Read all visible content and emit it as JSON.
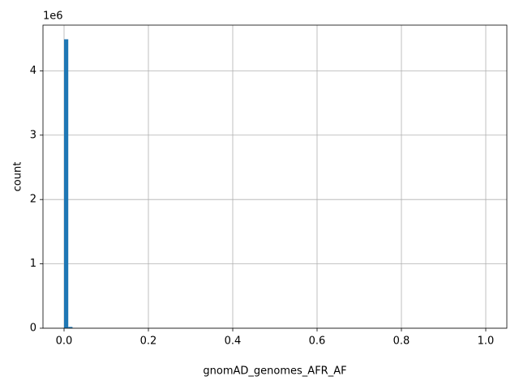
{
  "chart_data": {
    "type": "histogram",
    "x_label": "gnomAD_genomes_AFR_AF",
    "y_label": "count",
    "y_offset_label": "1e6",
    "color": "#1f77b4",
    "grid": true,
    "bins": [
      0,
      0.01,
      0.02,
      0.03,
      0.04,
      0.05,
      0.06,
      0.07,
      0.08,
      0.09,
      0.1,
      0.11,
      0.12,
      0.13,
      0.14,
      0.15,
      0.16,
      0.17,
      0.18,
      0.19,
      0.2,
      0.21,
      0.22,
      0.23,
      0.24,
      0.25,
      0.26,
      0.27,
      0.28,
      0.29,
      0.3,
      0.31,
      0.32,
      0.33,
      0.34,
      0.35,
      0.36,
      0.37,
      0.38,
      0.39,
      0.4,
      0.41,
      0.42,
      0.43,
      0.44,
      0.45,
      0.46,
      0.47,
      0.48,
      0.49,
      0.5,
      0.51,
      0.52,
      0.53,
      0.54,
      0.55,
      0.56,
      0.57,
      0.58,
      0.59,
      0.6,
      0.61,
      0.62,
      0.63,
      0.64,
      0.65,
      0.66,
      0.67,
      0.68,
      0.69,
      0.7,
      0.71,
      0.72,
      0.73,
      0.74,
      0.75,
      0.76,
      0.77,
      0.78,
      0.79,
      0.8,
      0.81,
      0.82,
      0.83,
      0.84,
      0.85,
      0.86,
      0.87,
      0.88,
      0.89,
      0.9,
      0.91,
      0.92,
      0.93,
      0.94,
      0.95,
      0.96,
      0.97,
      0.98,
      0.99,
      1
    ],
    "values": [
      4490000,
      20000,
      0,
      0,
      0,
      0,
      0,
      0,
      0,
      0,
      0,
      0,
      0,
      0,
      0,
      0,
      0,
      0,
      0,
      0,
      0,
      0,
      0,
      0,
      0,
      0,
      0,
      0,
      0,
      0,
      0,
      0,
      0,
      0,
      0,
      0,
      0,
      0,
      0,
      0,
      0,
      0,
      0,
      0,
      0,
      0,
      0,
      0,
      0,
      0,
      0,
      0,
      0,
      0,
      0,
      0,
      0,
      0,
      0,
      0,
      0,
      0,
      0,
      0,
      0,
      0,
      0,
      0,
      0,
      0,
      0,
      0,
      0,
      0,
      0,
      0,
      0,
      0,
      0,
      0,
      0,
      0,
      0,
      0,
      0,
      0,
      0,
      0,
      0,
      0,
      0,
      0,
      0,
      0,
      0,
      0,
      0,
      0,
      0,
      0
    ],
    "xlim": [
      -0.05,
      1.05
    ],
    "ylim": [
      0,
      4710000
    ],
    "xticks": [
      {
        "value": 0,
        "label": "0.0"
      },
      0.2,
      0.4,
      0.6,
      0.8,
      {
        "value": 1,
        "label": "1.0"
      }
    ],
    "yticks": [
      {
        "value": 0,
        "label": "0"
      },
      {
        "value": 1000000,
        "label": "1"
      },
      {
        "value": 2000000,
        "label": "2"
      },
      {
        "value": 3000000,
        "label": "3"
      },
      {
        "value": 4000000,
        "label": "4"
      }
    ]
  }
}
